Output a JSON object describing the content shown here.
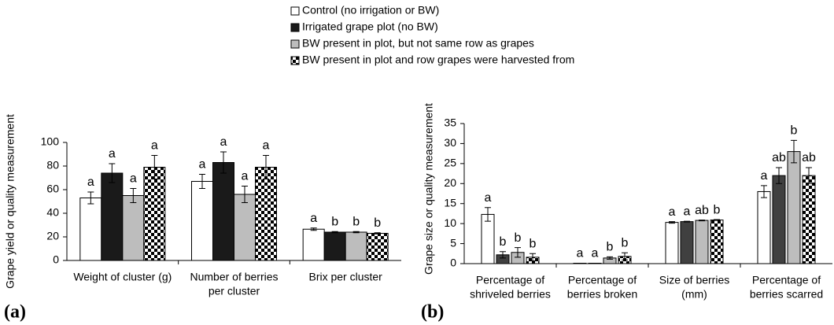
{
  "chart_data": [
    {
      "type": "bar",
      "label": "(a)",
      "y_label": "Grape yield or quality measurement",
      "categories": [
        [
          "Weight of cluster (g)"
        ],
        [
          "Number of berries",
          "per cluster"
        ],
        [
          "Brix per cluster"
        ]
      ],
      "ylim": [
        0,
        100
      ],
      "yticks": [
        0,
        20,
        40,
        60,
        80,
        100
      ],
      "series": [
        {
          "name": "Control (no irrigation or BW)",
          "color": "#ffffff",
          "values": [
            53,
            67,
            26.5
          ],
          "errors": [
            5,
            6,
            1
          ],
          "annotations": [
            "a",
            "a",
            "a"
          ]
        },
        {
          "name": "Irrigated grape plot (no BW)",
          "color": "#1a1a1a",
          "values": [
            74,
            83,
            24
          ],
          "errors": [
            8,
            9,
            0.5
          ],
          "annotations": [
            "a",
            "a",
            "b"
          ]
        },
        {
          "name": "BW present in plot, but not same row as grapes",
          "color": "#bdbdbd",
          "values": [
            55,
            56,
            24
          ],
          "errors": [
            6,
            7,
            0.5
          ],
          "annotations": [
            "a",
            "a",
            "b"
          ]
        },
        {
          "name": "BW present in plot and row grapes were harvested from",
          "color": "#000000",
          "pattern": "checker",
          "values": [
            79,
            79,
            23
          ],
          "errors": [
            10,
            10,
            0.5
          ],
          "annotations": [
            "a",
            "a",
            "b"
          ]
        }
      ]
    },
    {
      "type": "bar",
      "label": "(b)",
      "y_label": "Grape size or quality measurement",
      "categories": [
        [
          "Percentage of",
          "shriveled berries"
        ],
        [
          "Percentage of",
          "berries broken"
        ],
        [
          "Size of berries",
          "(mm)"
        ],
        [
          "Percentage of",
          "berries scarred"
        ]
      ],
      "ylim": [
        0,
        35
      ],
      "yticks": [
        0,
        5,
        10,
        15,
        20,
        25,
        30,
        35
      ],
      "series": [
        {
          "color": "#ffffff",
          "values": [
            12.3,
            0.1,
            10.3,
            18
          ],
          "errors": [
            1.7,
            0,
            0.2,
            1.5
          ],
          "annotations": [
            "a",
            "a",
            "a",
            "a"
          ]
        },
        {
          "color": "#404040",
          "values": [
            2.2,
            0.1,
            10.5,
            22
          ],
          "errors": [
            0.8,
            0,
            0.1,
            2
          ],
          "annotations": [
            "b",
            "a",
            "a",
            "ab"
          ]
        },
        {
          "color": "#bdbdbd",
          "values": [
            2.8,
            1.4,
            10.8,
            28
          ],
          "errors": [
            1.2,
            0.3,
            0.1,
            2.8
          ],
          "annotations": [
            "b",
            "b",
            "ab",
            "b"
          ]
        },
        {
          "color": "#000000",
          "pattern": "checker",
          "values": [
            1.6,
            1.8,
            10.9,
            22
          ],
          "errors": [
            0.9,
            0.9,
            0.1,
            2
          ],
          "annotations": [
            "b",
            "b",
            "b",
            "ab"
          ]
        }
      ]
    }
  ]
}
